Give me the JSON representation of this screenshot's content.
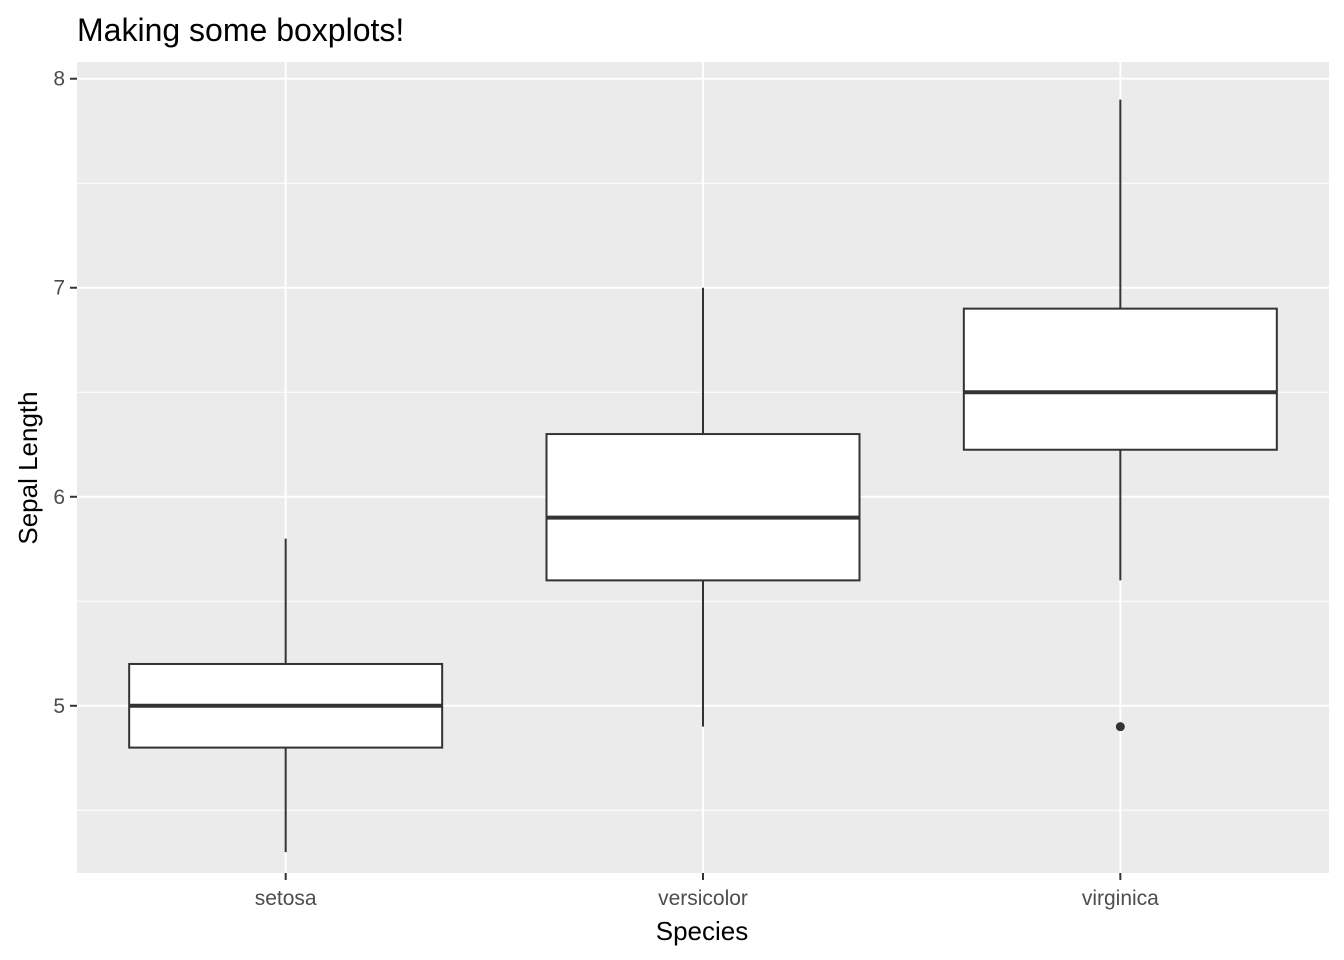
{
  "chart_data": {
    "type": "boxplot",
    "title": "Making some boxplots!",
    "xlabel": "Species",
    "ylabel": "Sepal Length",
    "categories": [
      "setosa",
      "versicolor",
      "virginica"
    ],
    "ylim": [
      4.2,
      8.08
    ],
    "yticks": [
      5,
      6,
      7,
      8
    ],
    "ytick_labels": [
      "5",
      "6",
      "7",
      "8"
    ],
    "grid": true,
    "boxes": [
      {
        "category": "setosa",
        "whisker_low": 4.3,
        "q1": 4.8,
        "median": 5.0,
        "q3": 5.2,
        "whisker_high": 5.8,
        "outliers": []
      },
      {
        "category": "versicolor",
        "whisker_low": 4.9,
        "q1": 5.6,
        "median": 5.9,
        "q3": 6.3,
        "whisker_high": 7.0,
        "outliers": []
      },
      {
        "category": "virginica",
        "whisker_low": 5.6,
        "q1": 6.225,
        "median": 6.5,
        "q3": 6.9,
        "whisker_high": 7.9,
        "outliers": [
          4.9
        ]
      }
    ]
  },
  "colors": {
    "panel_background": "#ebebeb",
    "grid_major": "#ffffff",
    "box_fill": "#ffffff",
    "box_stroke": "#333333",
    "tick_text": "#4d4d4d",
    "tick_mark": "#333333"
  }
}
